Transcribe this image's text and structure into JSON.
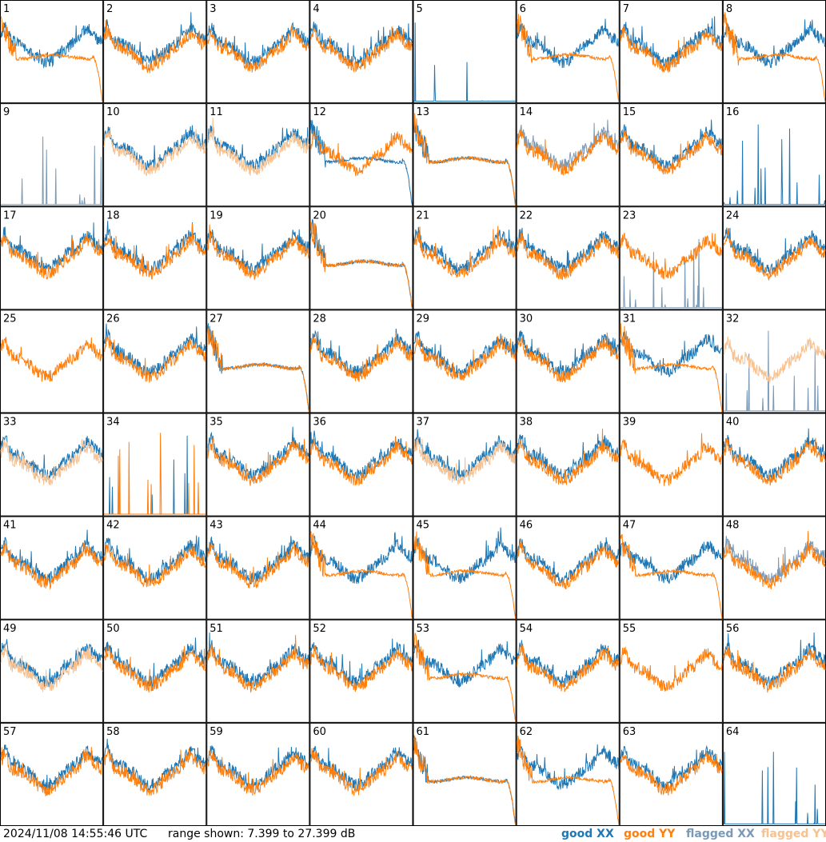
{
  "footer": {
    "timestamp": "2024/11/08 14:55:46 UTC",
    "range_label": "range shown: 7.399 to 27.399 dB"
  },
  "legend": [
    {
      "label": "good XX",
      "color": "#1f77b4"
    },
    {
      "label": "good YY",
      "color": "#ff7f0e"
    },
    {
      "label": "flagged XX",
      "color": "#7b99b5"
    },
    {
      "label": "flagged YY",
      "color": "#f8c190"
    }
  ],
  "chart_data": {
    "type": "line",
    "panels": 64,
    "columns": 8,
    "rows": 8,
    "ylim": [
      7.399,
      27.399
    ],
    "panel_labels": [
      "1",
      "2",
      "3",
      "4",
      "5",
      "6",
      "7",
      "8",
      "9",
      "10",
      "11",
      "12",
      "13",
      "14",
      "15",
      "16",
      "17",
      "18",
      "19",
      "20",
      "21",
      "22",
      "23",
      "24",
      "25",
      "26",
      "27",
      "28",
      "29",
      "30",
      "31",
      "32",
      "33",
      "34",
      "35",
      "36",
      "37",
      "38",
      "39",
      "40",
      "41",
      "42",
      "43",
      "44",
      "45",
      "46",
      "47",
      "48",
      "49",
      "50",
      "51",
      "52",
      "53",
      "54",
      "55",
      "56",
      "57",
      "58",
      "59",
      "60",
      "61",
      "62",
      "63",
      "64"
    ],
    "xx_flagged": [
      9,
      14,
      23,
      32,
      48
    ],
    "yy_flagged": [
      10,
      11,
      16,
      32,
      33,
      37,
      49
    ],
    "yy_rolloff": [
      1,
      6,
      8,
      13,
      20,
      27,
      31,
      44,
      45,
      47,
      53,
      61,
      62
    ],
    "xx_rolloff": [
      27,
      61,
      12,
      13,
      20
    ],
    "xx_spiky": [
      5,
      9,
      16,
      23,
      25,
      32,
      34,
      39,
      55,
      64
    ],
    "yy_spiky": [
      34
    ],
    "yy_absent": [
      5,
      9,
      16,
      64
    ],
    "xx_absent": [
      25,
      39,
      55
    ]
  }
}
